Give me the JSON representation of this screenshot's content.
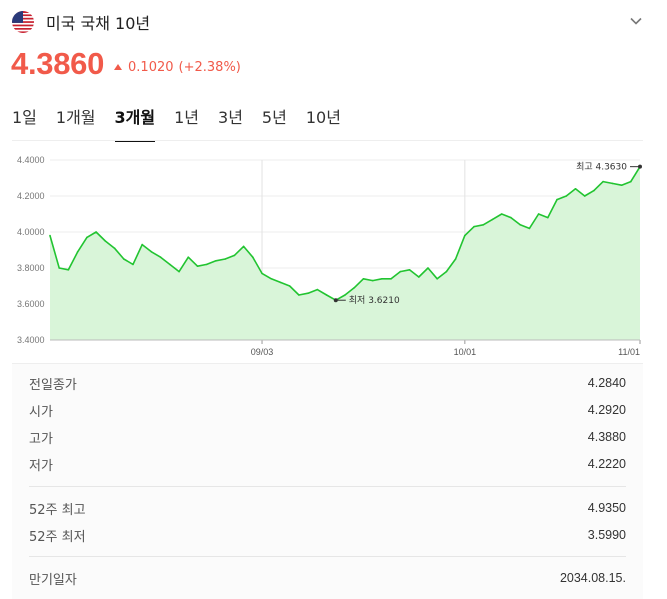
{
  "header": {
    "title": "미국 국채 10년",
    "flag_icon": "us-flag-icon",
    "menu_icon": "chevron-down-icon"
  },
  "quote": {
    "price": "4.3860",
    "change": "0.1020",
    "change_pct": "(+2.38%)",
    "direction_icon": "triangle-up-icon",
    "color": "#f15a4a"
  },
  "tabs": [
    {
      "label": "1일",
      "active": false
    },
    {
      "label": "1개월",
      "active": false
    },
    {
      "label": "3개월",
      "active": true
    },
    {
      "label": "1년",
      "active": false
    },
    {
      "label": "3년",
      "active": false
    },
    {
      "label": "5년",
      "active": false
    },
    {
      "label": "10년",
      "active": false
    }
  ],
  "chart_data": {
    "type": "area",
    "series_color": "#22c431",
    "fill_color": "#d9f5d9",
    "ylim": [
      3.4,
      4.4
    ],
    "yticks": [
      "4.4000",
      "4.2000",
      "4.0000",
      "3.8000",
      "3.6000",
      "3.4000"
    ],
    "xticks": [
      "09/03",
      "10/01",
      "11/01"
    ],
    "grid": true,
    "annotations": {
      "high": {
        "label": "최고",
        "value": "4.3630"
      },
      "low": {
        "label": "최저",
        "value": "3.6210"
      }
    },
    "values": [
      3.98,
      3.8,
      3.79,
      3.89,
      3.97,
      4.0,
      3.95,
      3.91,
      3.85,
      3.82,
      3.93,
      3.89,
      3.86,
      3.82,
      3.78,
      3.86,
      3.81,
      3.82,
      3.84,
      3.85,
      3.87,
      3.92,
      3.86,
      3.77,
      3.74,
      3.72,
      3.7,
      3.65,
      3.66,
      3.68,
      3.65,
      3.621,
      3.65,
      3.69,
      3.74,
      3.73,
      3.74,
      3.74,
      3.78,
      3.79,
      3.75,
      3.8,
      3.74,
      3.78,
      3.85,
      3.98,
      4.03,
      4.04,
      4.07,
      4.1,
      4.08,
      4.04,
      4.02,
      4.1,
      4.08,
      4.18,
      4.2,
      4.24,
      4.2,
      4.23,
      4.28,
      4.27,
      4.26,
      4.28,
      4.363
    ]
  },
  "stats": [
    {
      "key": "전일종가",
      "value": "4.2840"
    },
    {
      "key": "시가",
      "value": "4.2920"
    },
    {
      "key": "고가",
      "value": "4.3880"
    },
    {
      "key": "저가",
      "value": "4.2220"
    },
    {
      "key": "52주 최고",
      "value": "4.9350"
    },
    {
      "key": "52주 최저",
      "value": "3.5990"
    },
    {
      "key": "만기일자",
      "value": "2034.08.15."
    }
  ]
}
